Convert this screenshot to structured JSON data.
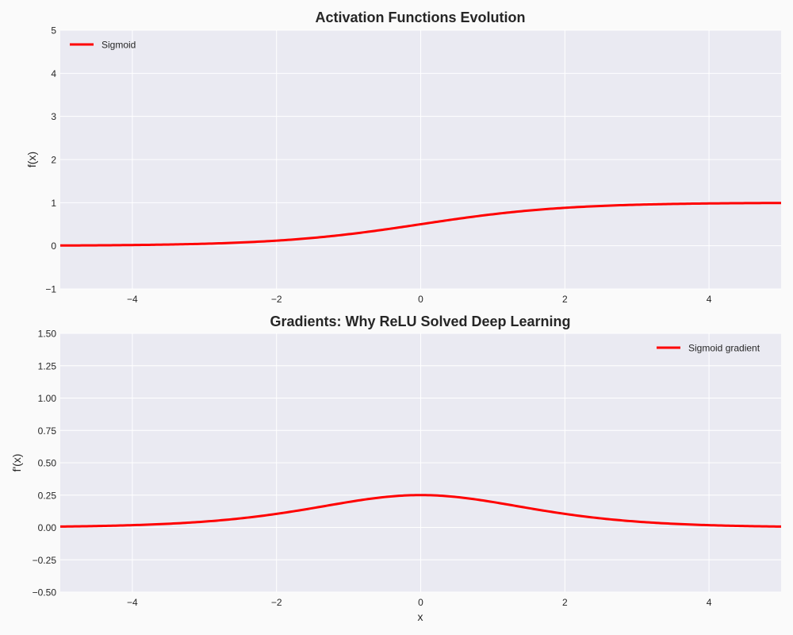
{
  "chart_data": [
    {
      "type": "line",
      "title": "Activation Functions Evolution",
      "xlabel": "",
      "ylabel": "f(x)",
      "xlim": [
        -5,
        5
      ],
      "ylim": [
        -1,
        5
      ],
      "xticks": [
        -4,
        -2,
        0,
        2,
        4
      ],
      "xtick_labels": [
        "−4",
        "−2",
        "0",
        "2",
        "4"
      ],
      "yticks": [
        -1,
        0,
        1,
        2,
        3,
        4,
        5
      ],
      "ytick_labels": [
        "−1",
        "0",
        "1",
        "2",
        "3",
        "4",
        "5"
      ],
      "grid": true,
      "legend_position": "top-left",
      "series": [
        {
          "name": "Sigmoid",
          "color": "#ff0000",
          "function": "sigmoid",
          "x": [
            -5,
            -4,
            -3,
            -2,
            -1,
            0,
            1,
            2,
            3,
            4,
            5
          ],
          "y": [
            0.007,
            0.018,
            0.047,
            0.119,
            0.269,
            0.5,
            0.731,
            0.881,
            0.953,
            0.982,
            0.993
          ]
        }
      ]
    },
    {
      "type": "line",
      "title": "Gradients: Why ReLU Solved Deep Learning",
      "xlabel": "x",
      "ylabel": "f'(x)",
      "xlim": [
        -5,
        5
      ],
      "ylim": [
        -0.5,
        1.5
      ],
      "xticks": [
        -4,
        -2,
        0,
        2,
        4
      ],
      "xtick_labels": [
        "−4",
        "−2",
        "0",
        "2",
        "4"
      ],
      "yticks": [
        -0.5,
        -0.25,
        0,
        0.25,
        0.5,
        0.75,
        1.0,
        1.25,
        1.5
      ],
      "ytick_labels": [
        "−0.50",
        "−0.25",
        "0.00",
        "0.25",
        "0.50",
        "0.75",
        "1.00",
        "1.25",
        "1.50"
      ],
      "grid": true,
      "legend_position": "top-right",
      "series": [
        {
          "name": "Sigmoid gradient",
          "color": "#ff0000",
          "function": "sigmoid_gradient",
          "x": [
            -5,
            -4,
            -3,
            -2,
            -1,
            0,
            1,
            2,
            3,
            4,
            5
          ],
          "y": [
            0.007,
            0.018,
            0.045,
            0.105,
            0.197,
            0.25,
            0.197,
            0.105,
            0.045,
            0.018,
            0.007
          ]
        }
      ]
    }
  ]
}
